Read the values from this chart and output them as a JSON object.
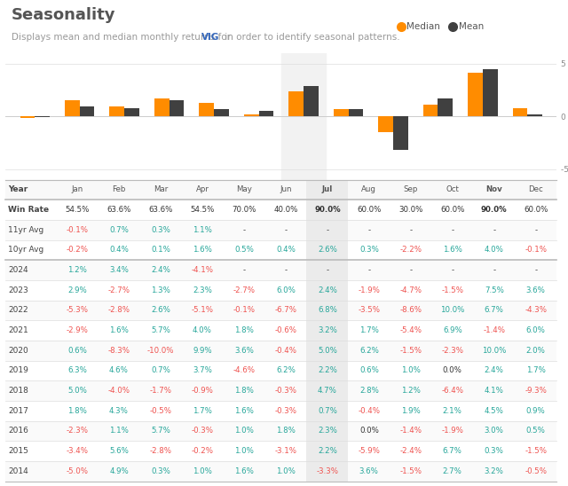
{
  "title": "Seasonality",
  "months": [
    "Jan",
    "Feb",
    "Mar",
    "Apr",
    "May",
    "Jun",
    "Jul",
    "Aug",
    "Sep",
    "Oct",
    "Nov",
    "Dec"
  ],
  "median": [
    -0.2,
    1.5,
    0.9,
    1.7,
    1.3,
    0.2,
    2.4,
    0.7,
    -1.5,
    1.1,
    4.1,
    0.8
  ],
  "mean": [
    -0.1,
    0.9,
    0.8,
    1.5,
    0.7,
    0.5,
    2.9,
    0.7,
    -3.2,
    1.7,
    4.5,
    0.2
  ],
  "ylim": [
    -6,
    6
  ],
  "yticks": [
    -5,
    0,
    5
  ],
  "color_median": "#FF8C00",
  "color_mean": "#404040",
  "color_pos": "#26A69A",
  "color_neg": "#EF5350",
  "highlight_col_idx": 6,
  "table_rows": [
    {
      "label": "Year",
      "bold": true,
      "is_header": true,
      "values": [
        "Jan",
        "Feb",
        "Mar",
        "Apr",
        "May",
        "Jun",
        "Jul",
        "Aug",
        "Sep",
        "Oct",
        "Nov",
        "Dec"
      ],
      "colors": [
        "n",
        "n",
        "n",
        "n",
        "n",
        "n",
        "n",
        "n",
        "n",
        "n",
        "n",
        "n"
      ]
    },
    {
      "label": "Win Rate",
      "bold": true,
      "is_winrate": true,
      "values": [
        "54.5%",
        "63.6%",
        "63.6%",
        "54.5%",
        "70.0%",
        "40.0%",
        "90.0%",
        "60.0%",
        "30.0%",
        "60.0%",
        "90.0%",
        "60.0%"
      ],
      "bold_cols": [
        6,
        10
      ],
      "colors": [
        "n",
        "n",
        "n",
        "n",
        "n",
        "n",
        "n",
        "n",
        "n",
        "n",
        "n",
        "n"
      ]
    },
    {
      "label": "11yr Avg",
      "bold": false,
      "is_avg": true,
      "values": [
        "-0.1%",
        "0.7%",
        "0.3%",
        "1.1%",
        "-",
        "-",
        "-",
        "-",
        "-",
        "-",
        "-",
        "-"
      ],
      "colors": [
        "neg",
        "pos",
        "pos",
        "pos",
        "n",
        "n",
        "n",
        "n",
        "n",
        "n",
        "n",
        "n"
      ]
    },
    {
      "label": "10yr Avg",
      "bold": false,
      "is_avg": true,
      "values": [
        "-0.2%",
        "0.4%",
        "0.1%",
        "1.6%",
        "0.5%",
        "0.4%",
        "2.6%",
        "0.3%",
        "-2.2%",
        "1.6%",
        "4.0%",
        "-0.1%"
      ],
      "colors": [
        "neg",
        "pos",
        "pos",
        "pos",
        "pos",
        "pos",
        "pos",
        "pos",
        "neg",
        "pos",
        "pos",
        "neg"
      ]
    },
    {
      "label": "2024",
      "bold": false,
      "values": [
        "1.2%",
        "3.4%",
        "2.4%",
        "-4.1%",
        "-",
        "-",
        "-",
        "-",
        "-",
        "-",
        "-",
        "-"
      ],
      "colors": [
        "pos",
        "pos",
        "pos",
        "neg",
        "n",
        "n",
        "n",
        "n",
        "n",
        "n",
        "n",
        "n"
      ]
    },
    {
      "label": "2023",
      "bold": false,
      "values": [
        "2.9%",
        "-2.7%",
        "1.3%",
        "2.3%",
        "-2.7%",
        "6.0%",
        "2.4%",
        "-1.9%",
        "-4.7%",
        "-1.5%",
        "7.5%",
        "3.6%"
      ],
      "colors": [
        "pos",
        "neg",
        "pos",
        "pos",
        "neg",
        "pos",
        "pos",
        "neg",
        "neg",
        "neg",
        "pos",
        "pos"
      ]
    },
    {
      "label": "2022",
      "bold": false,
      "values": [
        "-5.3%",
        "-2.8%",
        "2.6%",
        "-5.1%",
        "-0.1%",
        "-6.7%",
        "6.8%",
        "-3.5%",
        "-8.6%",
        "10.0%",
        "6.7%",
        "-4.3%"
      ],
      "colors": [
        "neg",
        "neg",
        "pos",
        "neg",
        "neg",
        "neg",
        "pos",
        "neg",
        "neg",
        "pos",
        "pos",
        "neg"
      ]
    },
    {
      "label": "2021",
      "bold": false,
      "values": [
        "-2.9%",
        "1.6%",
        "5.7%",
        "4.0%",
        "1.8%",
        "-0.6%",
        "3.2%",
        "1.7%",
        "-5.4%",
        "6.9%",
        "-1.4%",
        "6.0%"
      ],
      "colors": [
        "neg",
        "pos",
        "pos",
        "pos",
        "pos",
        "neg",
        "pos",
        "pos",
        "neg",
        "pos",
        "neg",
        "pos"
      ]
    },
    {
      "label": "2020",
      "bold": false,
      "values": [
        "0.6%",
        "-8.3%",
        "-10.0%",
        "9.9%",
        "3.6%",
        "-0.4%",
        "5.0%",
        "6.2%",
        "-1.5%",
        "-2.3%",
        "10.0%",
        "2.0%"
      ],
      "colors": [
        "pos",
        "neg",
        "neg",
        "pos",
        "pos",
        "neg",
        "pos",
        "pos",
        "neg",
        "neg",
        "pos",
        "pos"
      ]
    },
    {
      "label": "2019",
      "bold": false,
      "values": [
        "6.3%",
        "4.6%",
        "0.7%",
        "3.7%",
        "-4.6%",
        "6.2%",
        "2.2%",
        "0.6%",
        "1.0%",
        "0.0%",
        "2.4%",
        "1.7%"
      ],
      "colors": [
        "pos",
        "pos",
        "pos",
        "pos",
        "neg",
        "pos",
        "pos",
        "pos",
        "pos",
        "zero",
        "pos",
        "pos"
      ]
    },
    {
      "label": "2018",
      "bold": false,
      "values": [
        "5.0%",
        "-4.0%",
        "-1.7%",
        "-0.9%",
        "1.8%",
        "-0.3%",
        "4.7%",
        "2.8%",
        "1.2%",
        "-6.4%",
        "4.1%",
        "-9.3%"
      ],
      "colors": [
        "pos",
        "neg",
        "neg",
        "neg",
        "pos",
        "neg",
        "pos",
        "pos",
        "pos",
        "neg",
        "pos",
        "neg"
      ]
    },
    {
      "label": "2017",
      "bold": false,
      "values": [
        "1.8%",
        "4.3%",
        "-0.5%",
        "1.7%",
        "1.6%",
        "-0.3%",
        "0.7%",
        "-0.4%",
        "1.9%",
        "2.1%",
        "4.5%",
        "0.9%"
      ],
      "colors": [
        "pos",
        "pos",
        "neg",
        "pos",
        "pos",
        "neg",
        "pos",
        "neg",
        "pos",
        "pos",
        "pos",
        "pos"
      ]
    },
    {
      "label": "2016",
      "bold": false,
      "values": [
        "-2.3%",
        "1.1%",
        "5.7%",
        "-0.3%",
        "1.0%",
        "1.8%",
        "2.3%",
        "0.0%",
        "-1.4%",
        "-1.9%",
        "3.0%",
        "0.5%"
      ],
      "colors": [
        "neg",
        "pos",
        "pos",
        "neg",
        "pos",
        "pos",
        "pos",
        "zero",
        "neg",
        "neg",
        "pos",
        "pos"
      ]
    },
    {
      "label": "2015",
      "bold": false,
      "values": [
        "-3.4%",
        "5.6%",
        "-2.8%",
        "-0.2%",
        "1.0%",
        "-3.1%",
        "2.2%",
        "-5.9%",
        "-2.4%",
        "6.7%",
        "0.3%",
        "-1.5%"
      ],
      "colors": [
        "neg",
        "pos",
        "neg",
        "neg",
        "pos",
        "neg",
        "pos",
        "neg",
        "neg",
        "pos",
        "pos",
        "neg"
      ]
    },
    {
      "label": "2014",
      "bold": false,
      "values": [
        "-5.0%",
        "4.9%",
        "0.3%",
        "1.0%",
        "1.6%",
        "1.0%",
        "-3.3%",
        "3.6%",
        "-1.5%",
        "2.7%",
        "3.2%",
        "-0.5%"
      ],
      "colors": [
        "neg",
        "pos",
        "pos",
        "pos",
        "pos",
        "pos",
        "neg",
        "pos",
        "neg",
        "pos",
        "pos",
        "neg"
      ]
    }
  ]
}
